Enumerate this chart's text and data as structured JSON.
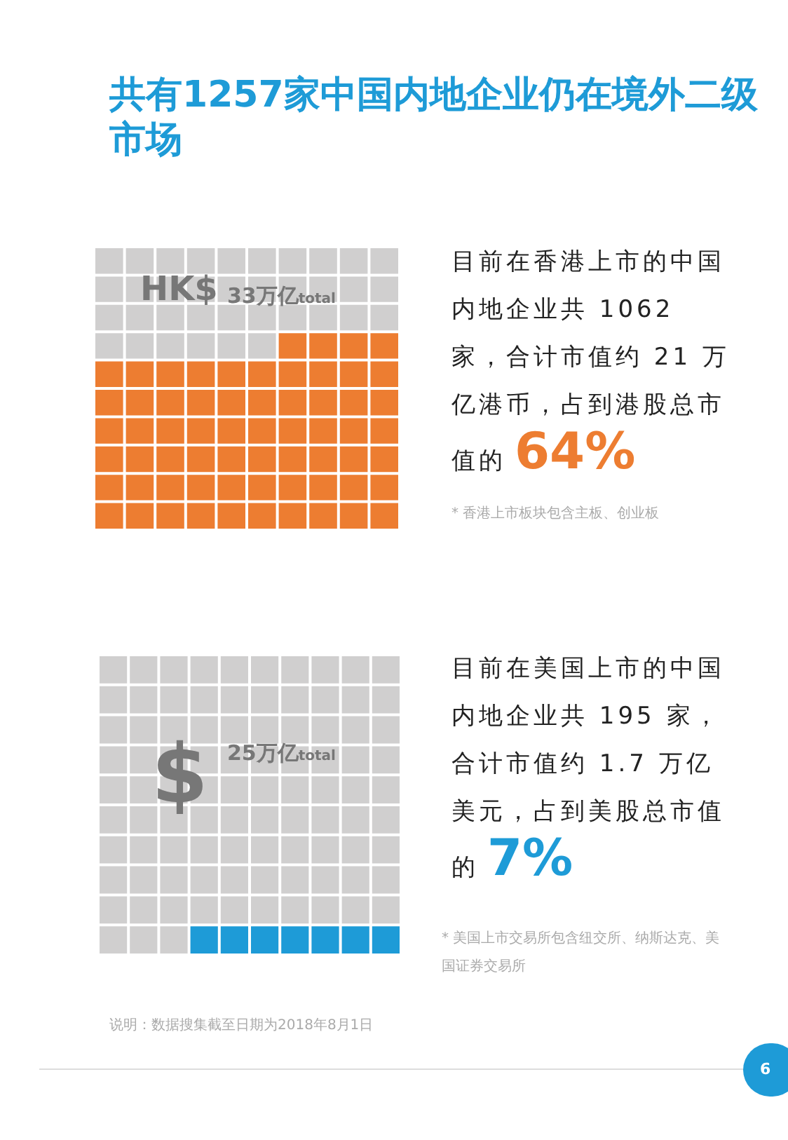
{
  "chart_data": [
    {
      "type": "other",
      "title": "共有1257家中国内地企业仍在境外二级市场",
      "values": [
        64
      ],
      "color": "#ed7d31",
      "value_labels": [
        "64%"
      ],
      "annotations": [
        "HK$",
        "33万亿$_{total}$",
        "目前在香港上市的中国内地企业共 1062 家，合计市值约 21 万亿港币，占到港股总市值的",
        "* 香港上市板块包含主板、创业板"
      ]
    },
    {
      "type": "other",
      "values": [
        7
      ],
      "color": "#1e9bd7",
      "value_labels": [
        "7%"
      ],
      "annotations": [
        "$",
        "25万亿$_{total}$",
        "目前在美国上市的中国内地企业共 195 家，合计市值约 1.7 万亿美元，占到美股总市值的",
        "* 美国上市交易所包含纽交所、纳斯达克、美国证券交易所",
        "说明：数据搜集截至日期为2018年8月1日",
        "6"
      ]
    }
  ]
}
